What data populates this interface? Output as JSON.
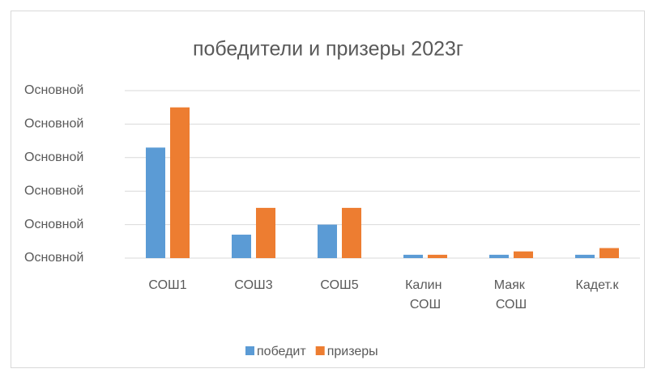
{
  "chart_data": {
    "type": "bar",
    "title": "победители и призеры 2023г",
    "categories": [
      "СОШ1",
      "СОШ3",
      "СОШ5",
      "Калин СОШ",
      "Маяк СОШ",
      "Кадет.к"
    ],
    "series": [
      {
        "name": "победит",
        "color": "#5b9bd5",
        "values": [
          33,
          7,
          10,
          1,
          1,
          1
        ]
      },
      {
        "name": "призеры",
        "color": "#ed7d31",
        "values": [
          45,
          15,
          15,
          1,
          2,
          3
        ]
      }
    ],
    "ylim": [
      0,
      50
    ],
    "yticks": [
      {
        "value": 0,
        "label": "Основной"
      },
      {
        "value": 10,
        "label": "Основной"
      },
      {
        "value": 20,
        "label": "Основной"
      },
      {
        "value": 30,
        "label": "Основной"
      },
      {
        "value": 40,
        "label": "Основной"
      },
      {
        "value": 50,
        "label": "Основной"
      }
    ],
    "grid": true,
    "legend": "bottom"
  }
}
